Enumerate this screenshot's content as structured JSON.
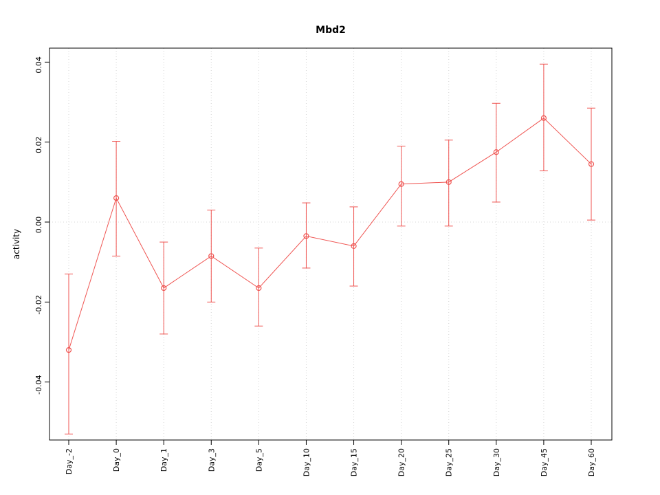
{
  "chart_data": {
    "type": "line",
    "title": "Mbd2",
    "xlabel": "",
    "ylabel": "activity",
    "categories": [
      "Day_-2",
      "Day_0",
      "Day_1",
      "Day_3",
      "Day_5",
      "Day_10",
      "Day_15",
      "Day_20",
      "Day_25",
      "Day_30",
      "Day_45",
      "Day_60"
    ],
    "series": [
      {
        "name": "activity",
        "values": [
          -0.032,
          0.006,
          -0.0165,
          -0.0085,
          -0.0165,
          -0.0035,
          -0.006,
          0.0095,
          0.01,
          0.0175,
          0.026,
          0.0145
        ],
        "lower": [
          -0.053,
          -0.0085,
          -0.028,
          -0.02,
          -0.026,
          -0.0115,
          -0.016,
          -0.001,
          -0.001,
          0.005,
          0.0128,
          0.0005
        ],
        "upper": [
          -0.013,
          0.0202,
          -0.005,
          0.003,
          -0.0065,
          0.0048,
          0.0038,
          0.019,
          0.0205,
          0.0297,
          0.0395,
          0.0285
        ]
      }
    ],
    "yticks": [
      -0.04,
      -0.02,
      0.0,
      0.02,
      0.04
    ],
    "ylim": [
      -0.0545,
      0.0435
    ],
    "grid": "dotted-vertical-at-each-x-plus-zero-line",
    "legend": "none",
    "series_color": "#ef5350",
    "grid_color": "#d4d4d4",
    "box_color": "#000000"
  }
}
